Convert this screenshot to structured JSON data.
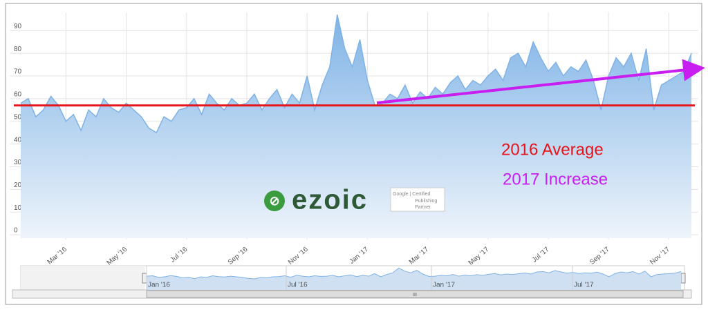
{
  "chart_data": {
    "type": "area",
    "categories": [
      null,
      null,
      null,
      null,
      null,
      null,
      "Mar '16",
      null,
      null,
      null,
      null,
      null,
      null,
      null,
      "May '16",
      null,
      null,
      null,
      null,
      null,
      null,
      null,
      "Jul '16",
      null,
      null,
      null,
      null,
      null,
      null,
      null,
      "Sep '16",
      null,
      null,
      null,
      null,
      null,
      null,
      null,
      "Nov '16",
      null,
      null,
      null,
      null,
      null,
      null,
      null,
      "Jan '17",
      null,
      null,
      null,
      null,
      null,
      null,
      null,
      "Mar '17",
      null,
      null,
      null,
      null,
      null,
      null,
      null,
      "May '17",
      null,
      null,
      null,
      null,
      null,
      null,
      null,
      "Jul '17",
      null,
      null,
      null,
      null,
      null,
      null,
      null,
      "Sep '17",
      null,
      null,
      null,
      null,
      null,
      null,
      null,
      "Nov '17",
      null,
      null,
      null
    ],
    "series": [
      {
        "color": "#7fb2e5",
        "values": [
          58,
          60,
          52,
          55,
          61,
          57,
          50,
          53,
          46,
          55,
          52,
          60,
          56,
          54,
          58,
          55,
          52,
          47,
          45,
          52,
          50,
          55,
          56,
          60,
          53,
          62,
          58,
          55,
          60,
          57,
          58,
          62,
          55,
          60,
          64,
          56,
          62,
          58,
          70,
          55,
          66,
          74,
          97,
          82,
          74,
          86,
          68,
          57,
          58,
          62,
          60,
          66,
          58,
          63,
          60,
          65,
          62,
          67,
          70,
          64,
          68,
          66,
          70,
          73,
          68,
          78,
          80,
          74,
          85,
          78,
          72,
          76,
          70,
          74,
          72,
          77,
          68,
          55,
          70,
          78,
          74,
          80,
          68,
          82,
          55,
          66,
          68,
          70,
          72,
          80
        ]
      }
    ],
    "ylim": [
      -1.5,
      98
    ],
    "yticks": [
      0,
      10,
      20,
      30,
      40,
      50,
      60,
      70,
      80,
      90
    ],
    "grid": true,
    "reference_line": {
      "value": 57,
      "color": "#e8141b",
      "label": "2016 Average"
    },
    "trend": {
      "color": "#c81ef0",
      "label": "2017 Increase"
    },
    "navigator": {
      "labels": [
        "Jan '16",
        "Jul '16",
        "Jan '17",
        "Jul '17"
      ],
      "scroll_label": "III"
    },
    "watermark": {
      "brand": "ezoic",
      "badge": [
        "Google | Certified",
        "Publishing",
        "Partner"
      ]
    }
  }
}
